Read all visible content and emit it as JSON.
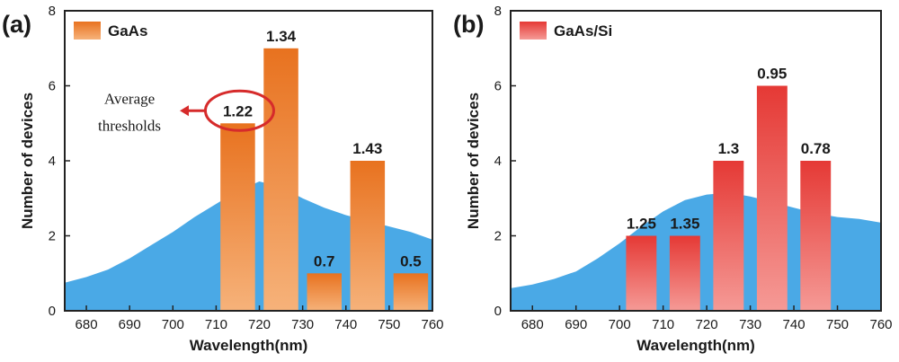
{
  "chart_data": [
    {
      "type": "bar",
      "panel_label": "(a)",
      "legend": "GaAs",
      "legend_placement": "top-left",
      "xlabel": "Wavelength(nm)",
      "ylabel": "Number of devices",
      "xlim": [
        675,
        760
      ],
      "ylim": [
        0,
        8
      ],
      "xticks": [
        680,
        690,
        700,
        710,
        720,
        730,
        740,
        750,
        760
      ],
      "yticks": [
        0,
        2,
        4,
        6,
        8
      ],
      "grid": false,
      "colors": {
        "top": "#e8721f",
        "bottom": "#f6b27a"
      },
      "bars": [
        {
          "x": 715,
          "value": 5,
          "label": "1.22"
        },
        {
          "x": 725,
          "value": 7,
          "label": "1.34"
        },
        {
          "x": 735,
          "value": 1,
          "label": "0.7"
        },
        {
          "x": 745,
          "value": 4,
          "label": "1.43"
        },
        {
          "x": 755,
          "value": 1,
          "label": "0.5"
        }
      ],
      "bar_width": 8,
      "annotation": {
        "lines": [
          "Average",
          "thresholds"
        ],
        "target_label": "1.22",
        "circle_color": "#d62b2b"
      },
      "background_spectrum": {
        "color": "#4aa9e6",
        "x": [
          675,
          680,
          685,
          690,
          695,
          700,
          705,
          710,
          715,
          720,
          725,
          730,
          735,
          740,
          745,
          750,
          755,
          760
        ],
        "y": [
          0.75,
          0.9,
          1.1,
          1.4,
          1.75,
          2.1,
          2.5,
          2.85,
          3.2,
          3.45,
          3.3,
          3.0,
          2.75,
          2.55,
          2.4,
          2.25,
          2.1,
          1.9
        ]
      }
    },
    {
      "type": "bar",
      "panel_label": "(b)",
      "legend": "GaAs/Si",
      "legend_placement": "top-left",
      "xlabel": "Wavelength(nm)",
      "ylabel": "Number of devices",
      "xlim": [
        675,
        760
      ],
      "ylim": [
        0,
        8
      ],
      "xticks": [
        680,
        690,
        700,
        710,
        720,
        730,
        740,
        750,
        760
      ],
      "yticks": [
        0,
        2,
        4,
        6,
        8
      ],
      "grid": false,
      "colors": {
        "top": "#e53935",
        "bottom": "#f59a96"
      },
      "bars": [
        {
          "x": 705,
          "value": 2,
          "label": "1.25"
        },
        {
          "x": 715,
          "value": 2,
          "label": "1.35"
        },
        {
          "x": 725,
          "value": 4,
          "label": "1.3"
        },
        {
          "x": 735,
          "value": 6,
          "label": "0.95"
        },
        {
          "x": 745,
          "value": 4,
          "label": "0.78"
        }
      ],
      "bar_width": 7,
      "background_spectrum": {
        "color": "#4aa9e6",
        "x": [
          675,
          680,
          685,
          690,
          695,
          700,
          705,
          710,
          715,
          720,
          725,
          730,
          735,
          740,
          745,
          750,
          755,
          760
        ],
        "y": [
          0.6,
          0.7,
          0.85,
          1.05,
          1.4,
          1.8,
          2.25,
          2.65,
          2.95,
          3.1,
          3.15,
          3.05,
          2.9,
          2.75,
          2.6,
          2.5,
          2.45,
          2.35
        ]
      }
    }
  ]
}
